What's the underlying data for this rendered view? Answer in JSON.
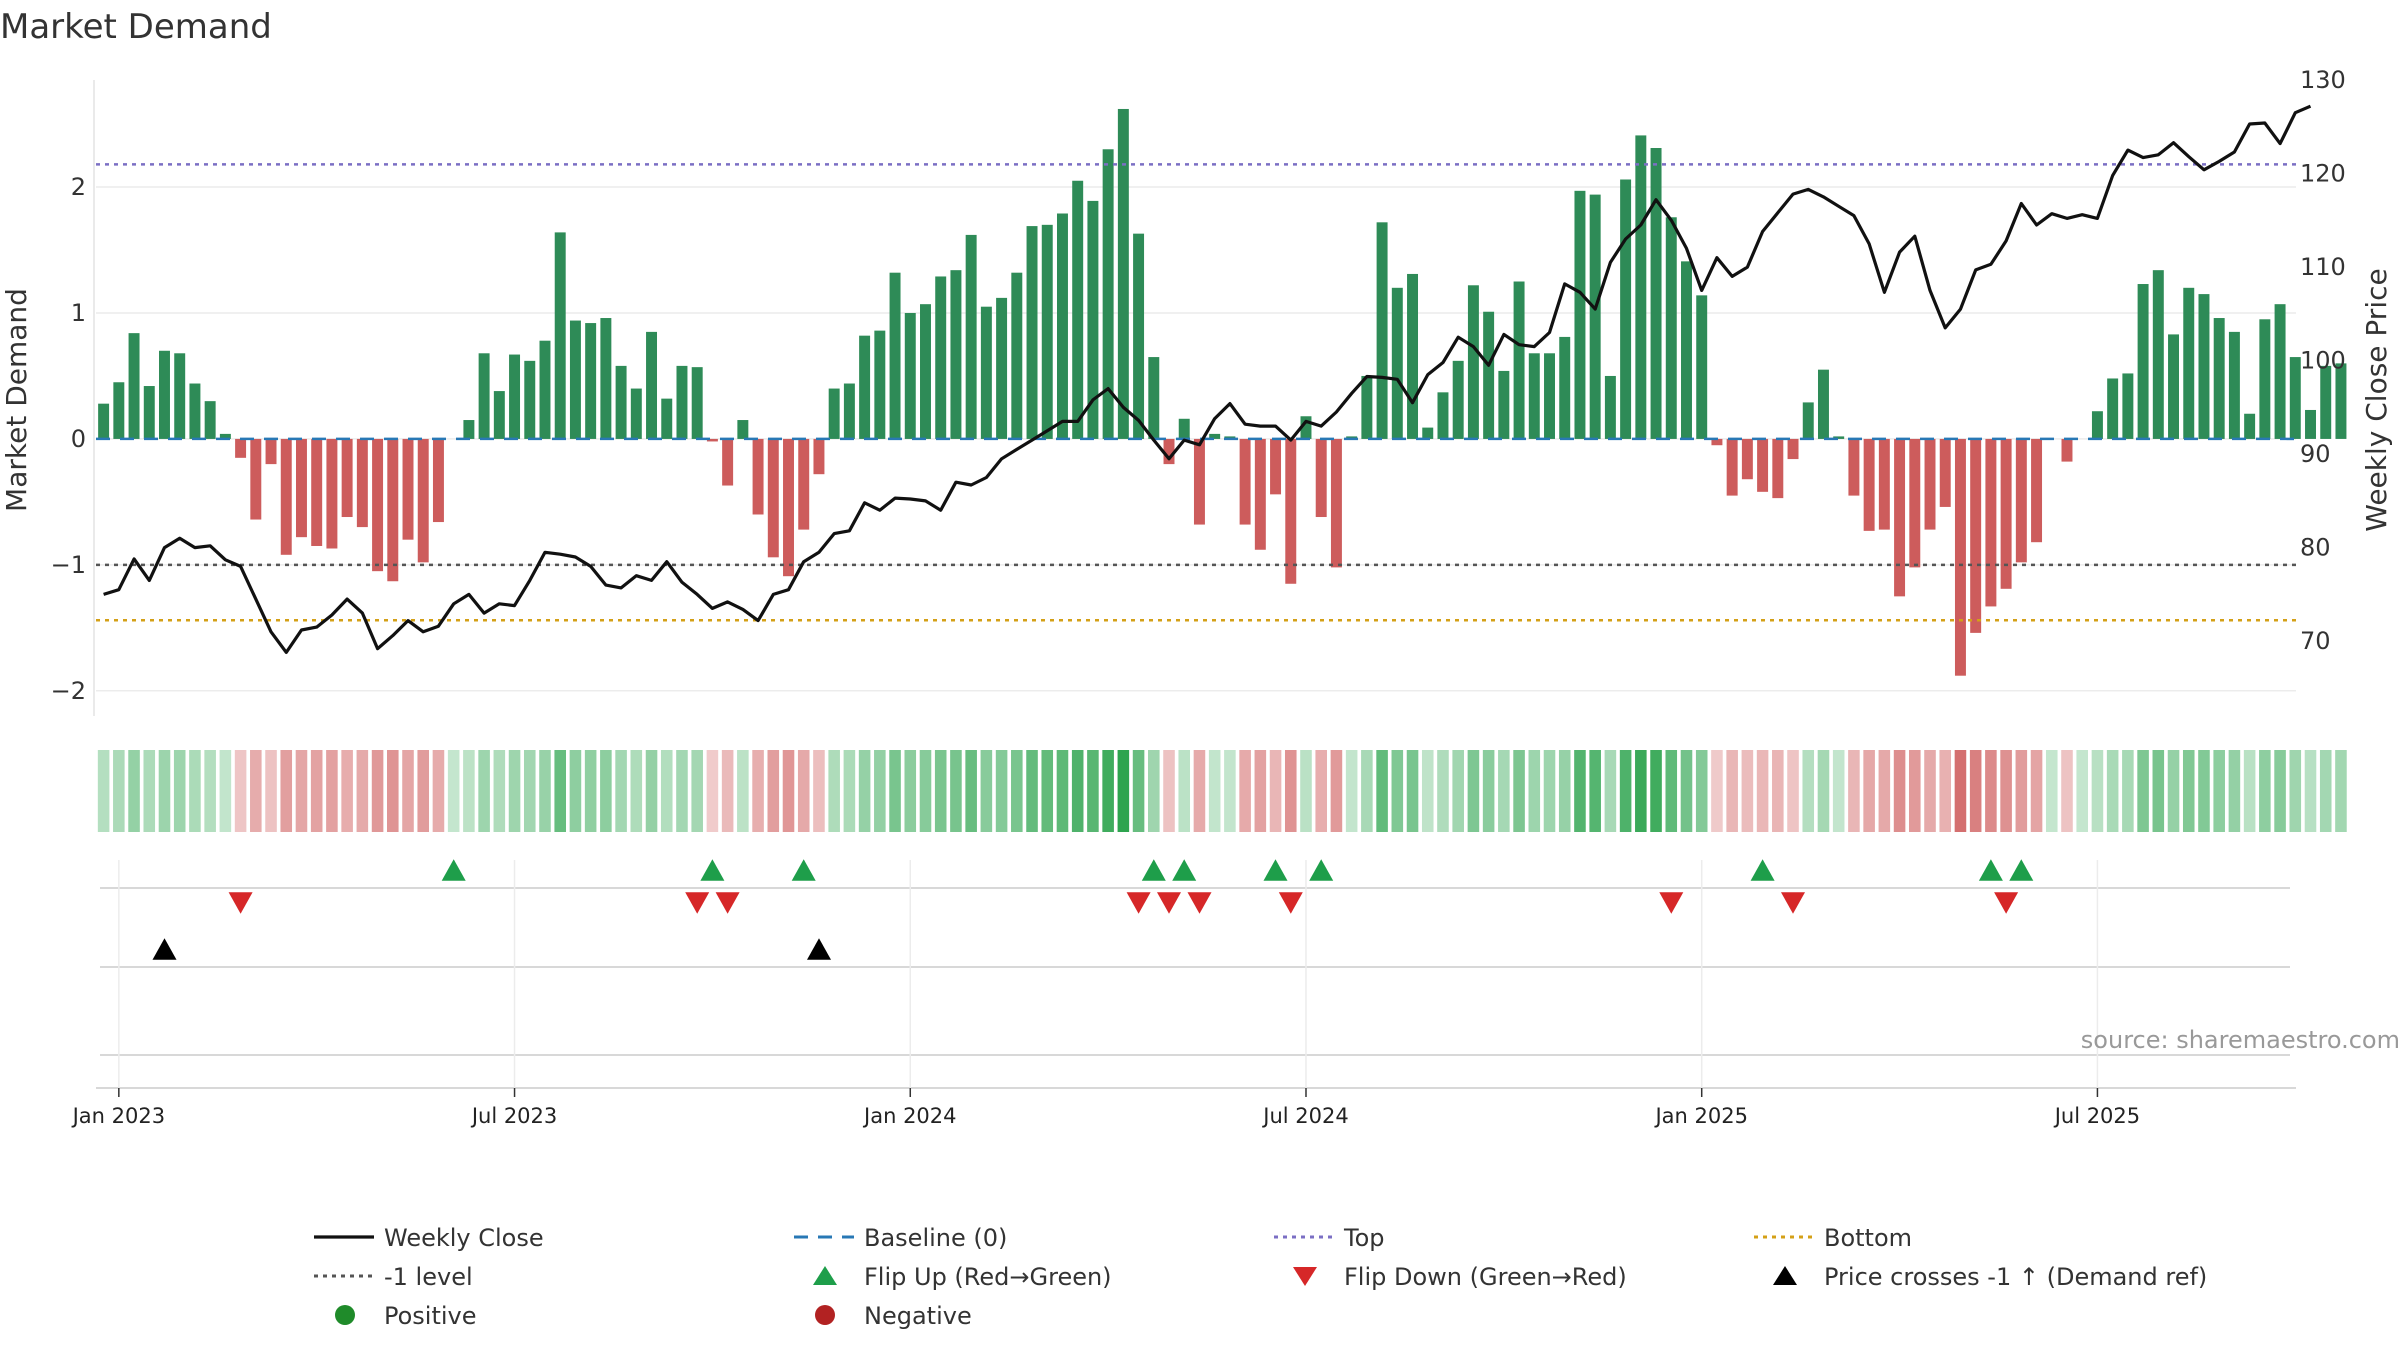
{
  "chart_data": {
    "type": "bar",
    "title": "Market Demand",
    "ylabel": "Market Demand",
    "y2label": "Weekly Close Price",
    "ylim": [
      -2.2,
      2.85
    ],
    "y2lim": [
      62,
      130
    ],
    "yticks": [
      -2,
      -1,
      0,
      1,
      2
    ],
    "y2ticks": [
      70,
      80,
      90,
      100,
      110,
      120,
      130
    ],
    "date_ticks": [
      "Jan 2023",
      "Jul 2023",
      "Jan 2024",
      "Jul 2024",
      "Jan 2025",
      "Jul 2025"
    ],
    "date_tick_weeks": [
      1.5,
      27.5,
      53.5,
      79.5,
      105.5,
      131.5
    ],
    "reference_lines": {
      "top": 2.18,
      "minus_one": -1.0,
      "bottom": -1.44,
      "baseline": 0
    },
    "colors": {
      "positive": "#2e8b57",
      "negative": "#cd5c5c",
      "price": "#111111",
      "top": "#7b6fc4",
      "minus_one": "#555555",
      "bottom": "#d4a017",
      "baseline": "#2878b5",
      "flip_up": "#1e9e4a",
      "flip_down": "#d62728",
      "cross": "#000000",
      "positive_dot": "#1f8b2a",
      "negative_dot": "#b22222"
    },
    "series": [
      {
        "name": "Market Demand",
        "values": [
          0.28,
          0.45,
          0.84,
          0.42,
          0.7,
          0.68,
          0.44,
          0.3,
          0.04,
          -0.15,
          -0.64,
          -0.2,
          -0.92,
          -0.78,
          -0.85,
          -0.87,
          -0.62,
          -0.7,
          -1.05,
          -1.13,
          -0.8,
          -0.98,
          -0.66,
          0,
          0.15,
          0.68,
          0.38,
          0.67,
          0.62,
          0.78,
          1.64,
          0.94,
          0.92,
          0.96,
          0.58,
          0.4,
          0.85,
          0.32,
          0.58,
          0.57,
          -0.02,
          -0.37,
          0.15,
          -0.6,
          -0.94,
          -1.09,
          -0.72,
          -0.28,
          0.4,
          0.44,
          0.82,
          0.86,
          1.32,
          1,
          1.07,
          1.29,
          1.34,
          1.62,
          1.05,
          1.12,
          1.32,
          1.69,
          1.7,
          1.79,
          2.05,
          1.89,
          2.3,
          2.62,
          1.63,
          0.65,
          -0.2,
          0.16,
          -0.68,
          0.04,
          0.02,
          -0.68,
          -0.88,
          -0.44,
          -1.15,
          0.18,
          -0.62,
          -1.02,
          0.02,
          0.5,
          1.72,
          1.2,
          1.31,
          0.09,
          0.37,
          0.62,
          1.22,
          1.01,
          0.54,
          1.25,
          0.68,
          0.68,
          0.81,
          1.97,
          1.94,
          0.5,
          2.06,
          2.41,
          2.31,
          1.76,
          1.41,
          1.14,
          -0.05,
          -0.45,
          -0.32,
          -0.42,
          -0.47,
          -0.16,
          0.29,
          0.55,
          0.02,
          -0.45,
          -0.73,
          -0.72,
          -1.25,
          -1.02,
          -0.72,
          -0.54,
          -1.88,
          -1.54,
          -1.33,
          -1.19,
          -0.98,
          -0.82,
          0,
          -0.18,
          0,
          0.22,
          0.48,
          0.52,
          1.23,
          1.34,
          0.83,
          1.2,
          1.15,
          0.96,
          0.85,
          0.2,
          0.95,
          1.07,
          0.65,
          0.23,
          0.58,
          0.6
        ]
      },
      {
        "name": "Weekly Close",
        "values": [
          75,
          75.5,
          78.8,
          76.5,
          80,
          81,
          80,
          80.2,
          78.7,
          78,
          74.5,
          71,
          68.8,
          71.2,
          71.5,
          72.8,
          74.5,
          73,
          69.2,
          70.6,
          72.2,
          71,
          71.6,
          74,
          75,
          73,
          74,
          73.8,
          76.5,
          79.5,
          79.3,
          79,
          78,
          76,
          75.7,
          77,
          76.5,
          78.5,
          76.3,
          75,
          73.5,
          74.2,
          73.4,
          72.2,
          75,
          75.5,
          78.5,
          79.5,
          81.5,
          81.8,
          84.8,
          84,
          85.3,
          85.2,
          85,
          84,
          87,
          86.7,
          87.5,
          89.5,
          90.5,
          91.5,
          92.5,
          93.5,
          93.5,
          95.8,
          97,
          95,
          93.6,
          91.5,
          89.5,
          91.5,
          91,
          93.8,
          95.4,
          93.2,
          93,
          93,
          91.5,
          93.5,
          93,
          94.5,
          96.5,
          98.3,
          98.2,
          98,
          95.5,
          98.5,
          99.8,
          102.5,
          101.5,
          99.5,
          102.8,
          101.7,
          101.5,
          103,
          108.2,
          107.3,
          105.5,
          110.5,
          113,
          114.5,
          117.2,
          115,
          112,
          107.5,
          111,
          109,
          110,
          113.8,
          115.8,
          117.8,
          118.3,
          117.5,
          116.5,
          115.5,
          112.5,
          107.3,
          111.6,
          113.3,
          107.5,
          103.5,
          105.5,
          109.7,
          110.3,
          112.8,
          116.8,
          114.5,
          115.7,
          115.2,
          115.6,
          115.2,
          119.8,
          122.5,
          121.7,
          122,
          123.3,
          121.8,
          120.4,
          121.3,
          122.3,
          125.3,
          125.4,
          123.2,
          126.5,
          127.2
        ]
      }
    ],
    "heat_strip": {
      "name": "Demand intensity strip",
      "source_series": "Market Demand"
    },
    "markers": {
      "flip_up_weeks": [
        23,
        40,
        46,
        69,
        71,
        77,
        80,
        109,
        124,
        126
      ],
      "flip_down_weeks": [
        9,
        39,
        41,
        68,
        70,
        72,
        78,
        103,
        111,
        125
      ],
      "cross_weeks": [
        4,
        47
      ]
    },
    "legend": {
      "position": "bottom",
      "entries": [
        {
          "label": "Weekly Close",
          "kind": "line",
          "key": "price"
        },
        {
          "label": "Baseline (0)",
          "kind": "dash",
          "key": "baseline"
        },
        {
          "label": "Top",
          "kind": "dot",
          "key": "top"
        },
        {
          "label": "Bottom",
          "kind": "dot",
          "key": "bottom"
        },
        {
          "label": "-1 level",
          "kind": "dot",
          "key": "minus_one"
        },
        {
          "label": "Flip Up (Red→Green)",
          "kind": "tri-up",
          "key": "flip_up"
        },
        {
          "label": "Flip Down (Green→Red)",
          "kind": "tri-down",
          "key": "flip_down"
        },
        {
          "label": "Price crosses -1 ↑ (Demand ref)",
          "kind": "tri-up",
          "key": "cross"
        },
        {
          "label": "Positive",
          "kind": "circle",
          "key": "positive_dot"
        },
        {
          "label": "Negative",
          "kind": "circle",
          "key": "negative_dot"
        }
      ]
    },
    "source": "source: sharemaestro.com"
  }
}
